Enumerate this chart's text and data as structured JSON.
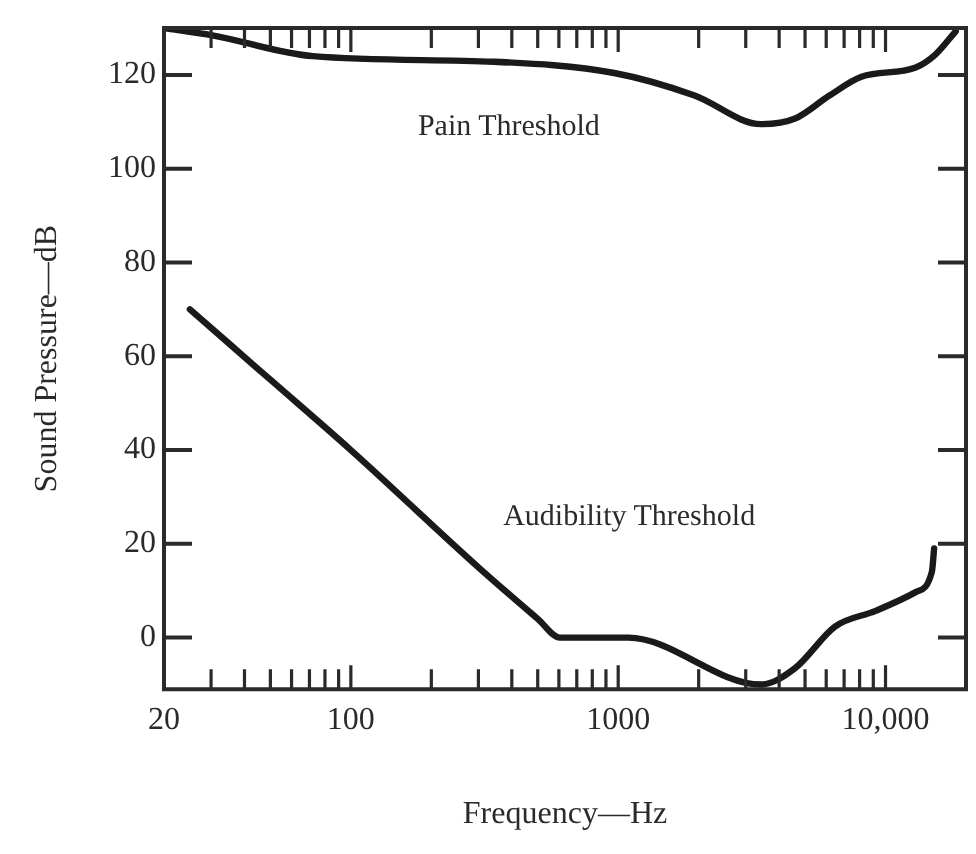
{
  "chart_data": {
    "type": "line",
    "xlabel": "Frequency—Hz",
    "ylabel": "Sound Pressure—dB",
    "log": "x",
    "grid": false,
    "legend": false,
    "marker": "none",
    "line_style": "solid",
    "xlim": [
      20,
      20000
    ],
    "ylim": [
      -11,
      130
    ],
    "xticks": [
      20,
      {
        "value": 30,
        "label": null
      },
      {
        "value": 40,
        "label": null
      },
      {
        "value": 50,
        "label": null
      },
      {
        "value": 60,
        "label": null
      },
      {
        "value": 70,
        "label": null
      },
      {
        "value": 80,
        "label": null
      },
      {
        "value": 90,
        "label": null
      },
      100,
      {
        "value": 200,
        "label": null
      },
      {
        "value": 300,
        "label": null
      },
      {
        "value": 400,
        "label": null
      },
      {
        "value": 500,
        "label": null
      },
      {
        "value": 600,
        "label": null
      },
      {
        "value": 700,
        "label": null
      },
      {
        "value": 800,
        "label": null
      },
      {
        "value": 900,
        "label": null
      },
      1000,
      {
        "value": 2000,
        "label": null
      },
      {
        "value": 3000,
        "label": null
      },
      {
        "value": 4000,
        "label": null
      },
      {
        "value": 5000,
        "label": null
      },
      {
        "value": 6000,
        "label": null
      },
      {
        "value": 7000,
        "label": null
      },
      {
        "value": 8000,
        "label": null
      },
      {
        "value": 9000,
        "label": null
      },
      {
        "value": 10000,
        "label": "10,000"
      }
    ],
    "yticks": [
      0,
      20,
      40,
      60,
      80,
      100,
      120
    ],
    "series": [
      {
        "name": "Pain Threshold",
        "color": "#1a1a1a",
        "x": [
          20,
          30,
          72,
          342,
          966,
          1930,
          3420,
          4590,
          6170,
          8130,
          12970,
          15400,
          18300
        ],
        "values": [
          130,
          128.5,
          124,
          122.8,
          120.4,
          115.6,
          109.5,
          110.7,
          115.6,
          119.6,
          121.6,
          124.4,
          129.3
        ]
      },
      {
        "name": "Audibility Threshold",
        "color": "#1a1a1a",
        "x": [
          25,
          50,
          100,
          300,
          500,
          605,
          1090,
          3420,
          4590,
          6490,
          9180,
          12970,
          14900,
          15200
        ],
        "values": [
          70,
          55,
          40,
          15,
          4,
          0,
          0,
          -10,
          -6.5,
          2.4,
          5.7,
          9.7,
          14,
          19
        ]
      }
    ]
  }
}
